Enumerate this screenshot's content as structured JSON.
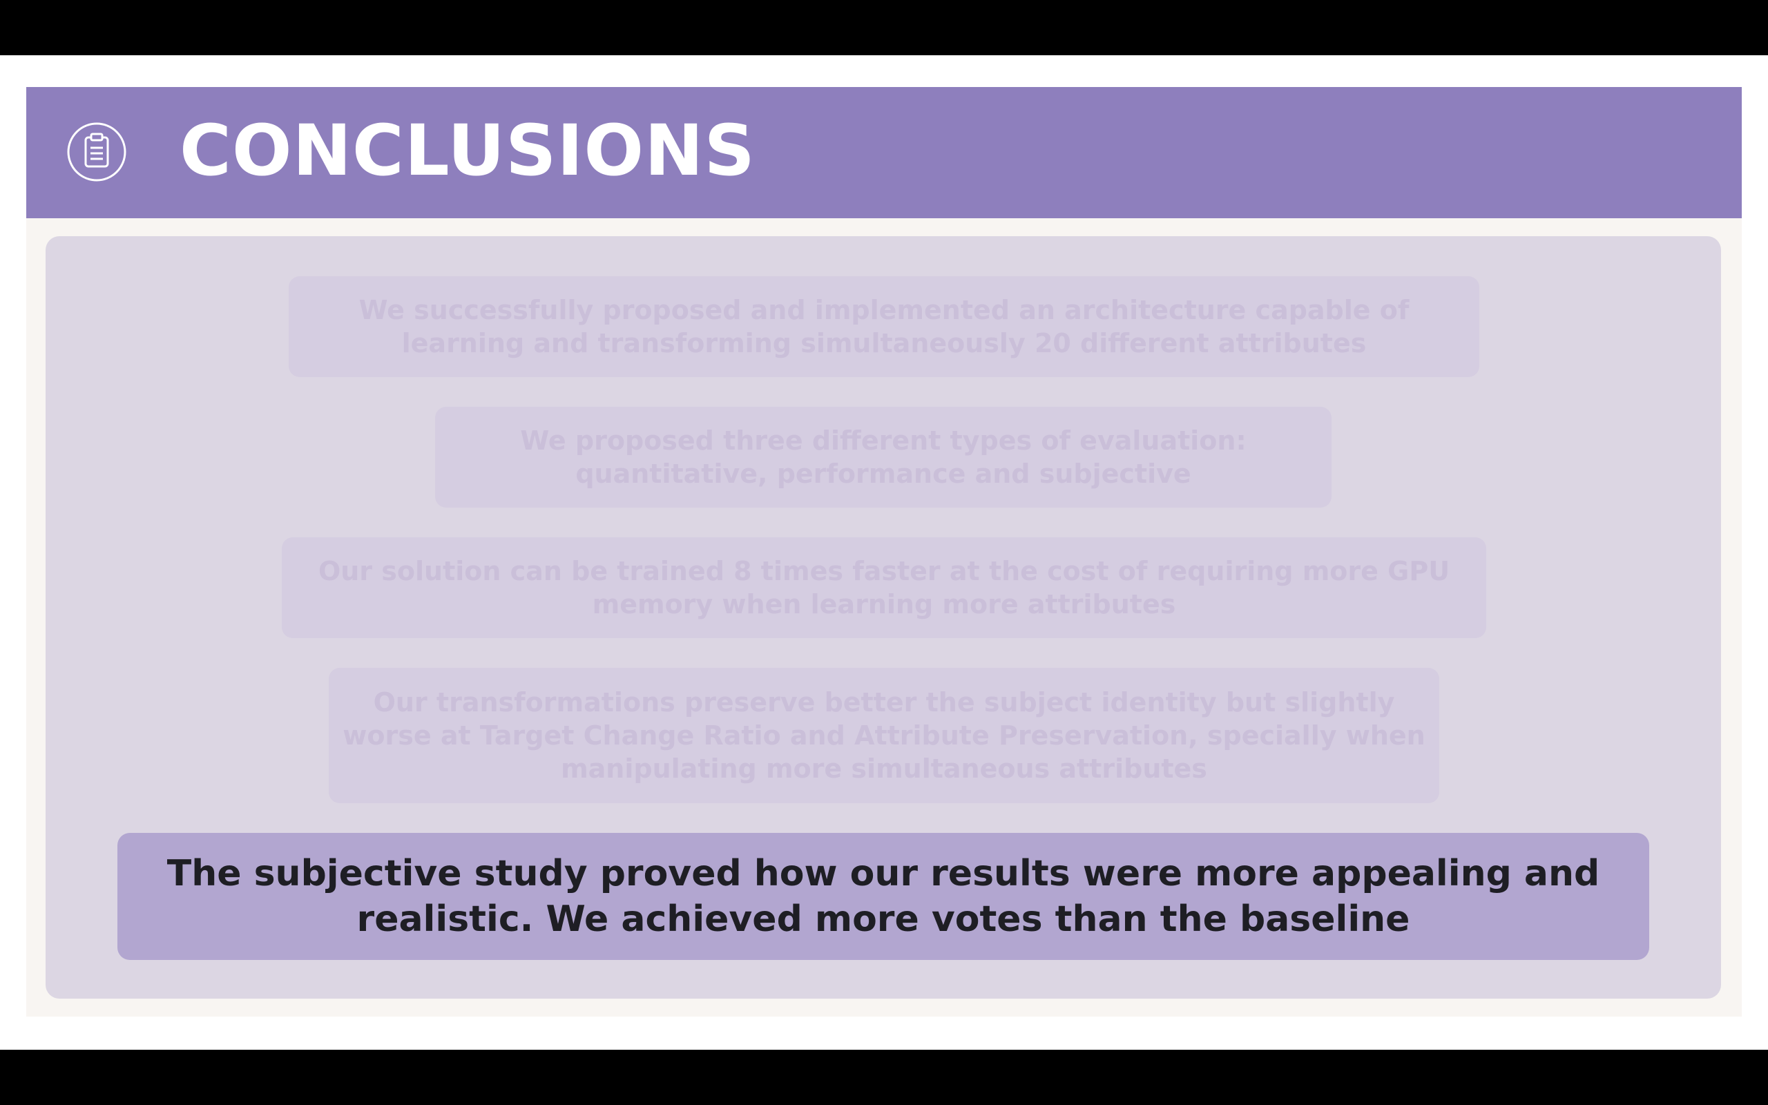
{
  "slide": {
    "title": "CONCLUSIONS",
    "icon": "clipboard-icon",
    "colors": {
      "header": "#8e7fbd",
      "panel": "#dcd6e3",
      "highlight": "#b2a6d0"
    },
    "points": [
      "We successfully proposed and implemented an architecture capable of learning and transforming simultaneously 20 different attributes",
      "We proposed three different types of evaluation: quantitative, performance and subjective",
      "Our solution can be trained 8 times faster at the cost of requiring more GPU memory when learning more attributes",
      "Our transformations preserve better the subject identity but slightly worse at Target Change Ratio and Attribute Preservation, specially when manipulating more simultaneous attributes"
    ],
    "highlight": "The subjective study proved how our results were more appealing and realistic. We achieved more votes than the baseline"
  }
}
